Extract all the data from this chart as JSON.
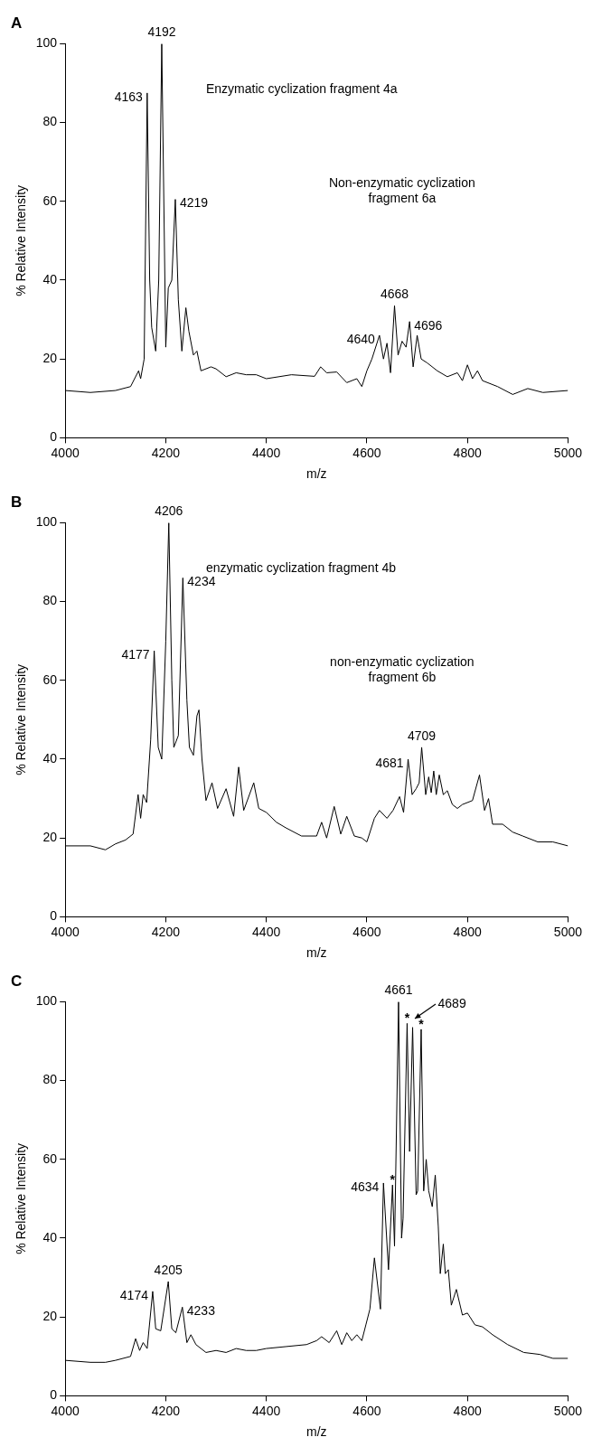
{
  "chart_data": [
    {
      "type": "line",
      "title": "A",
      "xlabel": "m/z",
      "ylabel": "% Relative Intensity",
      "xlim": [
        4000,
        5000
      ],
      "xticks": [
        4000,
        4200,
        4400,
        4600,
        4800,
        5000
      ],
      "ylim": [
        0,
        100
      ],
      "yticks": [
        0,
        20,
        40,
        60,
        80,
        100
      ],
      "grid": false,
      "marker": "none",
      "series": [
        {
          "color": "#000000",
          "x": [
            4000,
            4050,
            4100,
            4130,
            4146,
            4150,
            4157,
            4163,
            4168,
            4172,
            4180,
            4186,
            4192,
            4200,
            4205,
            4212,
            4219,
            4225,
            4232,
            4240,
            4246,
            4255,
            4262,
            4270,
            4290,
            4300,
            4320,
            4340,
            4360,
            4380,
            4400,
            4450,
            4496,
            4508,
            4520,
            4540,
            4560,
            4580,
            4590,
            4600,
            4610,
            4625,
            4633,
            4640,
            4647,
            4655,
            4662,
            4670,
            4678,
            4685,
            4692,
            4700,
            4708,
            4720,
            4740,
            4760,
            4780,
            4790,
            4800,
            4810,
            4820,
            4830,
            4860,
            4890,
            4920,
            4950,
            5000
          ],
          "values": [
            12,
            11.5,
            12,
            13,
            17,
            15,
            20,
            87.5,
            40,
            28,
            22,
            40,
            100,
            23,
            38,
            40,
            60.5,
            35,
            22,
            33,
            27,
            21,
            22,
            17,
            18,
            17.5,
            15.5,
            16.5,
            16,
            16,
            15,
            16,
            15.6,
            18,
            16.5,
            16.7,
            14,
            15,
            13,
            17,
            20,
            26,
            20,
            24,
            16.5,
            33.5,
            21,
            24.5,
            23,
            29.5,
            18,
            26,
            20,
            19,
            17,
            15.5,
            16.5,
            14.5,
            18.5,
            15,
            17,
            14.5,
            13,
            11,
            12.5,
            11.5,
            12
          ]
        }
      ],
      "annotations": [
        {
          "text": "4192",
          "x": 4192,
          "y": 100
        },
        {
          "text": "4163",
          "x": 4163,
          "y": 87.5
        },
        {
          "text": "4219",
          "x": 4219,
          "y": 60.5
        },
        {
          "text": "4668",
          "x": 4655,
          "y": 33.5
        },
        {
          "text": "4640",
          "x": 4625,
          "y": 26
        },
        {
          "text": "4696",
          "x": 4685,
          "y": 29.5
        },
        "Enzymatic cyclization fragment 4a",
        "Non-enzymatic cyclization fragment 6a"
      ]
    },
    {
      "type": "line",
      "title": "B",
      "xlabel": "m/z",
      "ylabel": "% Relative Intensity",
      "xlim": [
        4000,
        5000
      ],
      "xticks": [
        4000,
        4200,
        4400,
        4600,
        4800,
        5000
      ],
      "ylim": [
        0,
        100
      ],
      "yticks": [
        0,
        20,
        40,
        60,
        80,
        100
      ],
      "grid": false,
      "marker": "none",
      "series": [
        {
          "color": "#000000",
          "x": [
            4000,
            4050,
            4080,
            4100,
            4120,
            4135,
            4145,
            4150,
            4155,
            4162,
            4170,
            4177,
            4185,
            4192,
            4200,
            4206,
            4212,
            4216,
            4225,
            4234,
            4242,
            4247,
            4255,
            4262,
            4266,
            4272,
            4280,
            4292,
            4303,
            4320,
            4335,
            4345,
            4355,
            4375,
            4385,
            4400,
            4420,
            4440,
            4470,
            4500,
            4510,
            4520,
            4535,
            4548,
            4560,
            4575,
            4590,
            4600,
            4615,
            4625,
            4640,
            4652,
            4665,
            4673,
            4682,
            4690,
            4698,
            4704,
            4709,
            4717,
            4723,
            4728,
            4733,
            4738,
            4744,
            4752,
            4760,
            4770,
            4780,
            4790,
            4810,
            4824,
            4834,
            4842,
            4850,
            4870,
            4890,
            4910,
            4940,
            4970,
            5000
          ],
          "values": [
            18,
            18,
            17,
            18.5,
            19.5,
            21,
            31,
            25,
            31,
            29,
            45,
            67.5,
            43,
            40,
            70,
            100,
            60,
            43,
            46,
            86,
            55,
            43,
            41,
            51,
            52.5,
            40,
            29.5,
            34,
            27.5,
            32.5,
            25.5,
            38,
            27,
            34,
            27.5,
            26.5,
            24,
            22.5,
            20.5,
            20.5,
            24,
            20,
            28,
            21,
            25.5,
            20.5,
            20,
            19,
            25,
            27,
            25,
            27,
            30.5,
            26.5,
            40,
            31,
            32.5,
            34,
            43,
            31,
            35.5,
            31.5,
            37,
            31,
            36,
            31,
            32,
            28.5,
            27.5,
            28.5,
            29.5,
            36,
            27,
            30,
            23.5,
            23.5,
            21.5,
            20.5,
            19,
            19,
            18
          ]
        }
      ],
      "annotations": [
        {
          "text": "4206",
          "x": 4206,
          "y": 100
        },
        {
          "text": "4234",
          "x": 4234,
          "y": 86
        },
        {
          "text": "4177",
          "x": 4177,
          "y": 67.5
        },
        {
          "text": "4709",
          "x": 4709,
          "y": 43
        },
        {
          "text": "4681",
          "x": 4682,
          "y": 40
        },
        "enzymatic cyclization fragment 4b",
        "non-enzymatic cyclization fragment 6b"
      ]
    },
    {
      "type": "line",
      "title": "C",
      "xlabel": "m/z",
      "ylabel": "% Relative Intensity",
      "xlim": [
        4000,
        5000
      ],
      "xticks": [
        4000,
        4200,
        4400,
        4600,
        4800,
        5000
      ],
      "ylim": [
        0,
        100
      ],
      "yticks": [
        0,
        20,
        40,
        60,
        80,
        100
      ],
      "grid": false,
      "marker": "none",
      "series": [
        {
          "color": "#000000",
          "x": [
            4000,
            4050,
            4080,
            4100,
            4130,
            4140,
            4148,
            4155,
            4163,
            4174,
            4180,
            4190,
            4205,
            4212,
            4220,
            4233,
            4242,
            4250,
            4260,
            4280,
            4300,
            4320,
            4340,
            4360,
            4380,
            4400,
            4440,
            4480,
            4500,
            4510,
            4525,
            4540,
            4550,
            4560,
            4570,
            4580,
            4590,
            4598,
            4606,
            4615,
            4627,
            4633,
            4643,
            4651,
            4655,
            4663,
            4669,
            4672,
            4680,
            4685,
            4691,
            4698,
            4701,
            4708,
            4713,
            4718,
            4723,
            4730,
            4736,
            4742,
            4746,
            4752,
            4756,
            4762,
            4768,
            4778,
            4790,
            4800,
            4815,
            4830,
            4850,
            4880,
            4912,
            4944,
            4970,
            5000
          ],
          "values": [
            9,
            8.5,
            8.5,
            9,
            10,
            14.5,
            11.5,
            13.5,
            12,
            26.5,
            17,
            16.5,
            29,
            17,
            16,
            22.5,
            13.5,
            15.5,
            13,
            11,
            11.5,
            11,
            12,
            11.5,
            11.5,
            12,
            12.5,
            13,
            14,
            15,
            13.5,
            16.5,
            13,
            16,
            14,
            15.5,
            14,
            18,
            22,
            35,
            22,
            54,
            32,
            53.5,
            38,
            100,
            40,
            45,
            94.5,
            62,
            93.5,
            51,
            52,
            93,
            52,
            60,
            52,
            48,
            56,
            43,
            31,
            38.5,
            31,
            32,
            23,
            27,
            20.5,
            21,
            18,
            17.5,
            15.5,
            13,
            11,
            10.5,
            9.5,
            9.5
          ]
        }
      ],
      "annotations": [
        {
          "text": "4661",
          "x": 4663,
          "y": 100
        },
        {
          "text": "*",
          "x": 4651,
          "y": 53.5
        },
        {
          "text": "*",
          "x": 4680,
          "y": 94.5
        },
        {
          "text": "*",
          "x": 4708,
          "y": 93
        },
        {
          "text": "4689",
          "x": 4691,
          "y": 93.5
        },
        {
          "text": "4634",
          "x": 4633,
          "y": 54
        },
        {
          "text": "4205",
          "x": 4205,
          "y": 29
        },
        {
          "text": "4174",
          "x": 4174,
          "y": 26.5
        },
        {
          "text": "4233",
          "x": 4233,
          "y": 22.5
        }
      ]
    }
  ]
}
